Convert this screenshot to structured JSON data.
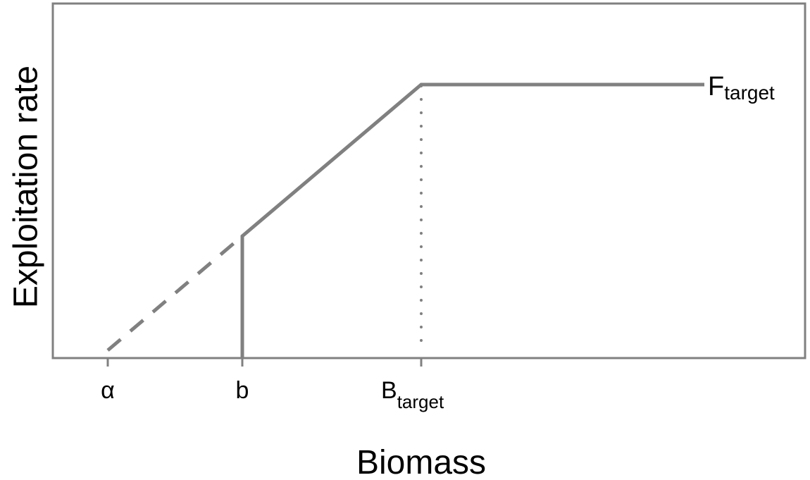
{
  "y_axis": {
    "label": "Exploitation rate"
  },
  "x_axis": {
    "label": "Biomass",
    "ticks": [
      {
        "main": "α"
      },
      {
        "main": "b"
      },
      {
        "main": "B",
        "sub": "target"
      }
    ]
  },
  "line_label": {
    "main": "F",
    "sub": "target"
  }
}
